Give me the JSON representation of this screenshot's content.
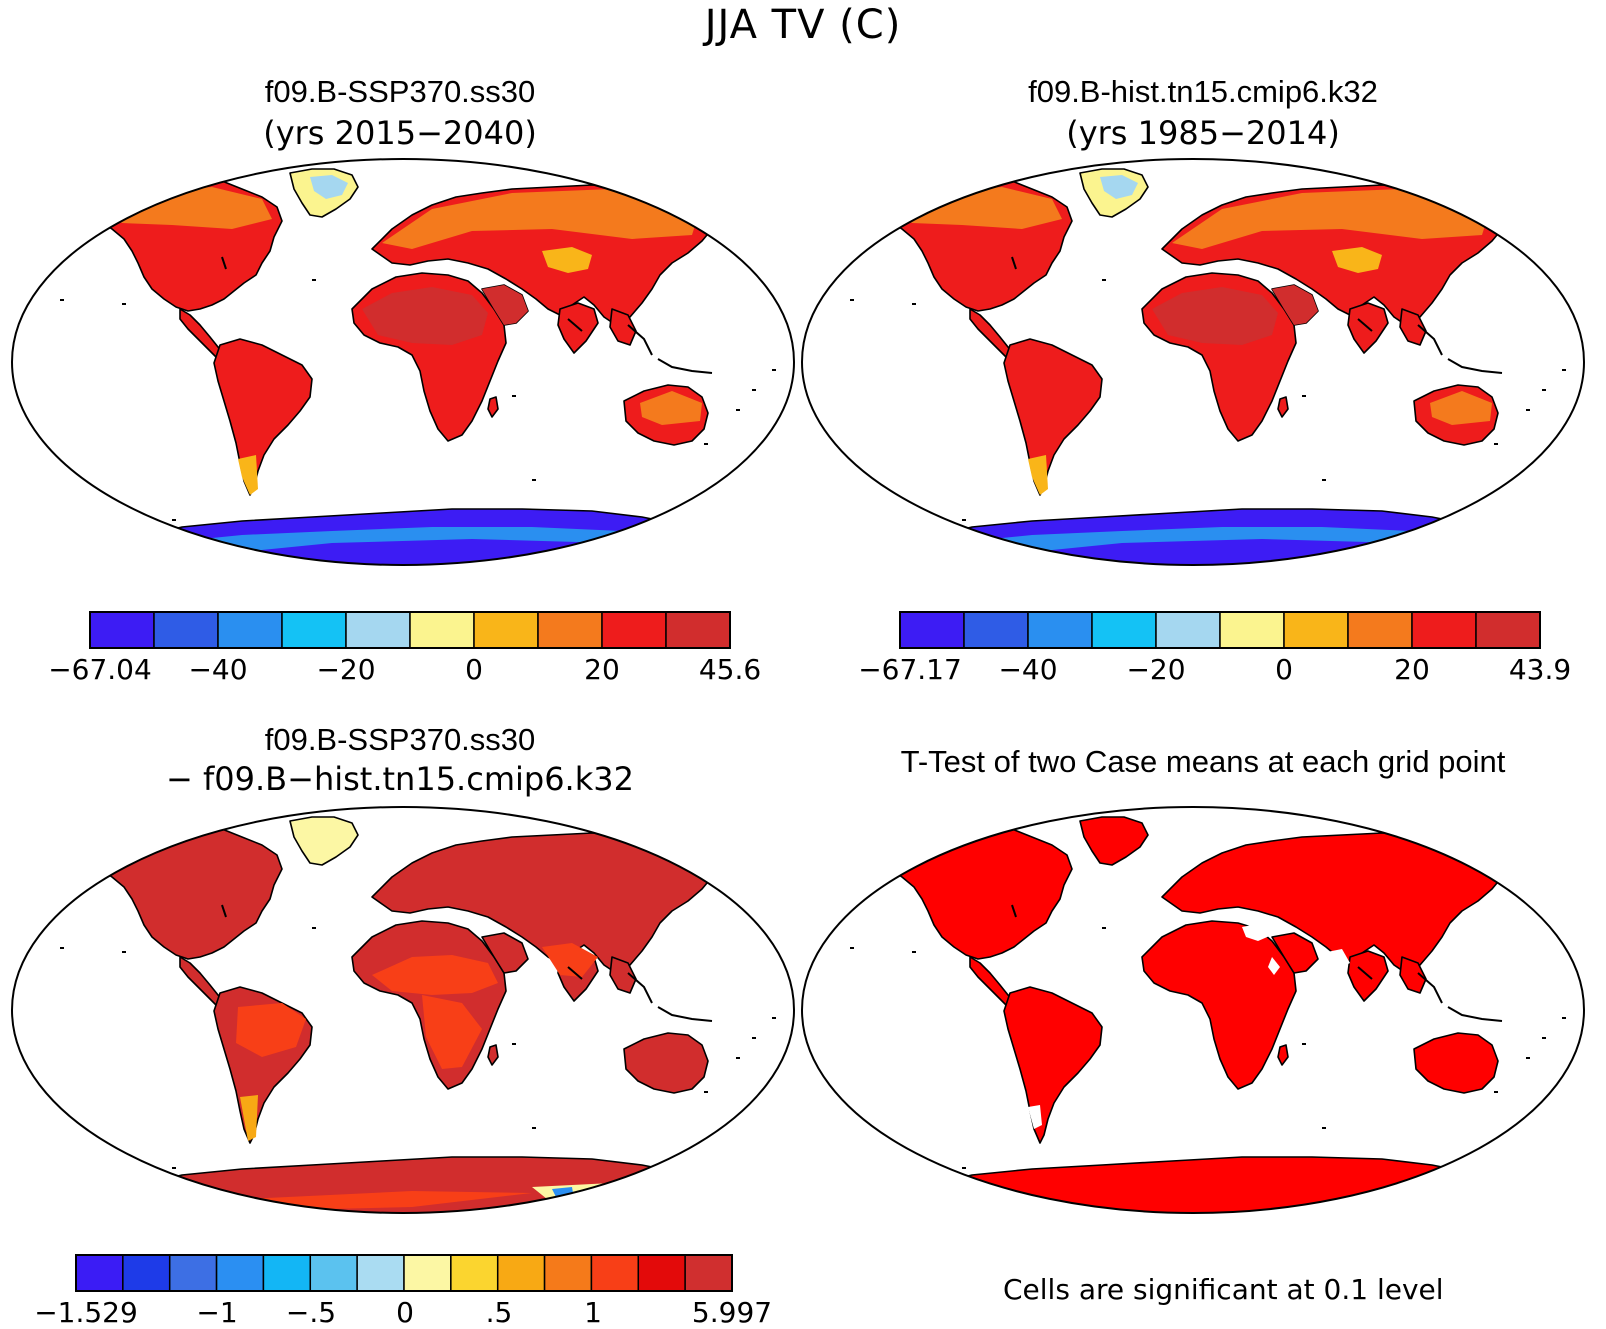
{
  "main_title": "JJA TV (C)",
  "panels": [
    {
      "id": "p1",
      "title": "f09.B-SSP370.ss30",
      "subtitle": "(yrs 2015−2040)"
    },
    {
      "id": "p2",
      "title": "f09.B-hist.tn15.cmip6.k32",
      "subtitle": "(yrs 1985−2014)"
    },
    {
      "id": "p3",
      "title": "f09.B-SSP370.ss30",
      "subtitle": "− f09.B−hist.tn15.cmip6.k32"
    },
    {
      "id": "p4",
      "title": "T-Test of two Case means at each grid point",
      "subtitle": ""
    }
  ],
  "colorbars": {
    "cb1": {
      "colors": [
        "#3d1cf4",
        "#2f5ce6",
        "#2a8ff0",
        "#14c2f5",
        "#a5d7f0",
        "#fbf48f",
        "#f9b519",
        "#f47a1d",
        "#ee1c1c",
        "#d12d2d"
      ],
      "labels": [
        "−67.04",
        "−40",
        "−20",
        "0",
        "20",
        "45.6"
      ]
    },
    "cb2": {
      "colors": [
        "#3d1cf4",
        "#2f5ce6",
        "#2a8ff0",
        "#14c2f5",
        "#a5d7f0",
        "#fbf48f",
        "#f9b519",
        "#f47a1d",
        "#ee1c1c",
        "#d12d2d"
      ],
      "labels": [
        "−67.17",
        "−40",
        "−20",
        "0",
        "20",
        "43.9"
      ]
    },
    "cb3": {
      "colors": [
        "#3b1cf5",
        "#1e3be8",
        "#3d6fe4",
        "#2b8ff2",
        "#13b6f5",
        "#5bc2ef",
        "#aadcf2",
        "#fcf7a4",
        "#fbd52f",
        "#f8a914",
        "#f57a1a",
        "#f83f17",
        "#e30a0a",
        "#d02f2f"
      ],
      "labels": [
        "−1.529",
        "−1",
        "−.5",
        "0",
        ".5",
        "1",
        "5.997"
      ]
    }
  },
  "significance_note": "Cells are significant at 0.1 level",
  "map_colors": {
    "p1": {
      "land": "#ee1c1c",
      "hot": "#d12d2d",
      "warm": "#f47a1d",
      "mild": "#f9b519",
      "ice": "#fbf48f",
      "ant": "#3d1cf4",
      "ant2": "#2a8ff0"
    },
    "p2": {
      "land": "#ee1c1c",
      "hot": "#d12d2d",
      "warm": "#f47a1d",
      "mild": "#f9b519",
      "ice": "#fbf48f",
      "ant": "#3d1cf4",
      "ant2": "#2a8ff0"
    },
    "p3": {
      "land": "#d12d2d",
      "hot": "#d12d2d",
      "warm": "#f83f17",
      "mild": "#f8a914",
      "ice": "#fcf7a4",
      "ant": "#d12d2d",
      "ant2": "#f8a914"
    },
    "p4": {
      "land": "#ff0000",
      "hot": "#ff0000",
      "warm": "#ff0000",
      "mild": "#ff0000",
      "ice": "#ff0000",
      "ant": "#ff0000",
      "ant2": "#ff0000"
    }
  }
}
